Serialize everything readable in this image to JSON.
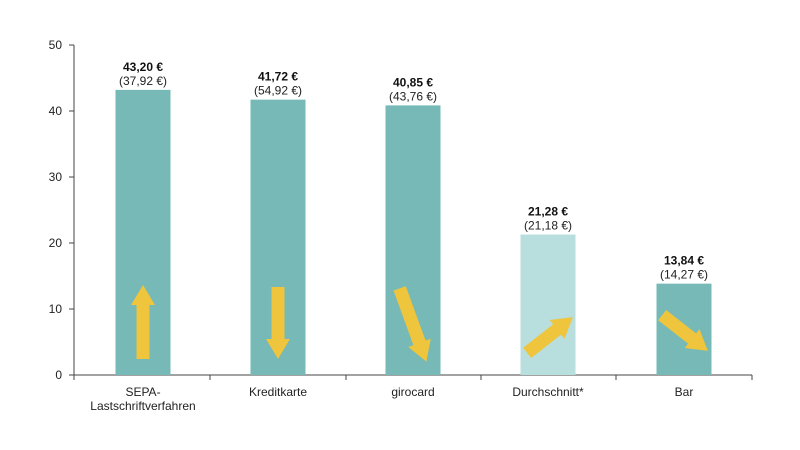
{
  "chart_data": {
    "type": "bar",
    "categories": [
      "SEPA-\nLastschriftverfahren",
      "Kreditkarte",
      "girocard",
      "Durchschnitt*",
      "Bar"
    ],
    "values": [
      43.2,
      41.72,
      40.85,
      21.28,
      13.84
    ],
    "value_labels": [
      "43,20 €",
      "41,72 €",
      "40,85 €",
      "21,28 €",
      "13,84 €"
    ],
    "previous_labels": [
      "(37,92 €)",
      "(54,92 €)",
      "(43,76 €)",
      "(21,18 €)",
      "(14,27 €)"
    ],
    "trend_arrows": [
      "up",
      "down",
      "down-steep",
      "up-right",
      "down-right"
    ],
    "yticks": [
      "0",
      "10",
      "20",
      "30",
      "40",
      "50"
    ],
    "ylim": [
      0,
      50
    ],
    "grid": false,
    "colors": {
      "bar": "#76b9b6",
      "bar_highlight": "#b8dedd",
      "arrow": "#eec53c",
      "axis": "#444444"
    },
    "highlight_index": 3
  }
}
